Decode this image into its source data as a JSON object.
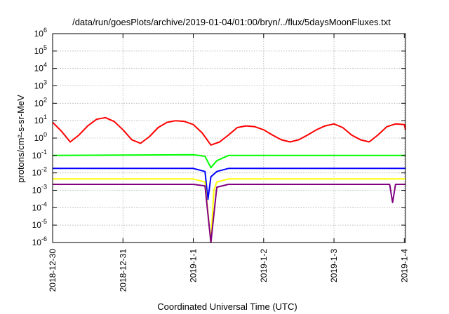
{
  "chart_data": {
    "type": "line",
    "title": "/data/run/goesPlots/archive/2019-01-04/01:00/bryn/../flux/5daysMoonFluxes.txt",
    "xlabel": "Coordinated Universal Time (UTC)",
    "ylabel": "protons/cm²-s-sr-MeV",
    "y_scale": "log",
    "ylim": [
      1e-06,
      1000000.0
    ],
    "xlim": [
      "2018-12-30T00:00",
      "2019-01-04T00:24"
    ],
    "x_ticks": [
      "2018-12-30",
      "2018-12-31",
      "2019-1-1",
      "2019-1-2",
      "2019-1-3",
      "2019-1-4"
    ],
    "y_ticks": [
      {
        "value": 1e-06,
        "base": "10",
        "exp": "-6"
      },
      {
        "value": 1e-05,
        "base": "10",
        "exp": "-5"
      },
      {
        "value": 0.0001,
        "base": "10",
        "exp": "-4"
      },
      {
        "value": 0.001,
        "base": "10",
        "exp": "-3"
      },
      {
        "value": 0.01,
        "base": "10",
        "exp": "-2"
      },
      {
        "value": 0.1,
        "base": "10",
        "exp": "-1"
      },
      {
        "value": 1.0,
        "base": "10",
        "exp": "0"
      },
      {
        "value": 10.0,
        "base": "10",
        "exp": "1"
      },
      {
        "value": 100.0,
        "base": "10",
        "exp": "2"
      },
      {
        "value": 1000.0,
        "base": "10",
        "exp": "3"
      },
      {
        "value": 10000.0,
        "base": "10",
        "exp": "4"
      },
      {
        "value": 100000.0,
        "base": "10",
        "exp": "5"
      },
      {
        "value": 1000000.0,
        "base": "10",
        "exp": "6"
      }
    ],
    "grid": true,
    "series": [
      {
        "color": "#ff0000",
        "x": [
          "2018-12-30T00:00",
          "2018-12-30T03:00",
          "2018-12-30T06:00",
          "2018-12-30T09:00",
          "2018-12-30T12:00",
          "2018-12-30T15:00",
          "2018-12-30T18:00",
          "2018-12-30T21:00",
          "2018-12-31T00:00",
          "2018-12-31T03:00",
          "2018-12-31T06:00",
          "2018-12-31T09:00",
          "2018-12-31T12:00",
          "2018-12-31T15:00",
          "2018-12-31T18:00",
          "2018-12-31T21:00",
          "2019-01-01T00:00",
          "2019-01-01T03:00",
          "2019-01-01T06:00",
          "2019-01-01T09:00",
          "2019-01-01T12:00",
          "2019-01-01T15:00",
          "2019-01-01T18:00",
          "2019-01-01T21:00",
          "2019-01-02T00:00",
          "2019-01-02T03:00",
          "2019-01-02T06:00",
          "2019-01-02T09:00",
          "2019-01-02T12:00",
          "2019-01-02T15:00",
          "2019-01-02T18:00",
          "2019-01-02T21:00",
          "2019-01-03T00:00",
          "2019-01-03T03:00",
          "2019-01-03T06:00",
          "2019-01-03T09:00",
          "2019-01-03T12:00",
          "2019-01-03T15:00",
          "2019-01-03T18:00",
          "2019-01-03T21:00",
          "2019-01-04T00:00",
          "2019-01-04T00:24"
        ],
        "values": [
          8,
          2.5,
          0.6,
          1.5,
          5,
          12,
          15,
          9,
          3,
          0.8,
          0.5,
          1.2,
          4,
          8,
          10,
          9,
          6,
          2,
          0.4,
          0.6,
          1.5,
          4,
          5,
          4.5,
          3,
          1.5,
          0.8,
          0.6,
          0.8,
          1.5,
          3,
          5,
          6.5,
          4,
          1.5,
          0.8,
          0.6,
          1.5,
          4.5,
          6.5,
          6,
          3
        ]
      },
      {
        "color": "#00ff00",
        "x": [
          "2018-12-30T00:00",
          "2019-01-01T00:00",
          "2019-01-01T04:00",
          "2019-01-01T06:00",
          "2019-01-01T08:00",
          "2019-01-01T12:00",
          "2019-01-03T00:00",
          "2019-01-04T00:24"
        ],
        "values": [
          0.1,
          0.11,
          0.09,
          0.02,
          0.05,
          0.1,
          0.1,
          0.1
        ]
      },
      {
        "color": "#0000ff",
        "x": [
          "2018-12-30T00:00",
          "2019-01-01T00:00",
          "2019-01-01T04:00",
          "2019-01-01T05:00",
          "2019-01-01T06:00",
          "2019-01-01T08:00",
          "2019-01-01T12:00",
          "2019-01-04T00:24"
        ],
        "values": [
          0.018,
          0.018,
          0.012,
          0.0003,
          0.006,
          0.012,
          0.018,
          0.018
        ]
      },
      {
        "color": "#ffff00",
        "x": [
          "2018-12-30T00:00",
          "2019-01-01T00:00",
          "2019-01-01T04:00",
          "2019-01-01T06:00",
          "2019-01-01T07:00",
          "2019-01-01T08:00",
          "2019-01-01T12:00",
          "2019-01-04T00:24"
        ],
        "values": [
          0.0045,
          0.0045,
          0.003,
          1e-06,
          0.001,
          0.003,
          0.0045,
          0.0045
        ]
      },
      {
        "color": "#800080",
        "x": [
          "2018-12-30T00:00",
          "2019-01-01T00:00",
          "2019-01-01T04:00",
          "2019-01-01T06:00",
          "2019-01-01T08:00",
          "2019-01-01T12:00",
          "2019-01-03T19:00",
          "2019-01-03T20:00",
          "2019-01-03T21:00",
          "2019-01-04T00:24"
        ],
        "values": [
          0.0022,
          0.0022,
          0.0018,
          1e-06,
          0.0015,
          0.0022,
          0.0022,
          0.0002,
          0.0022,
          0.0022
        ]
      }
    ]
  }
}
